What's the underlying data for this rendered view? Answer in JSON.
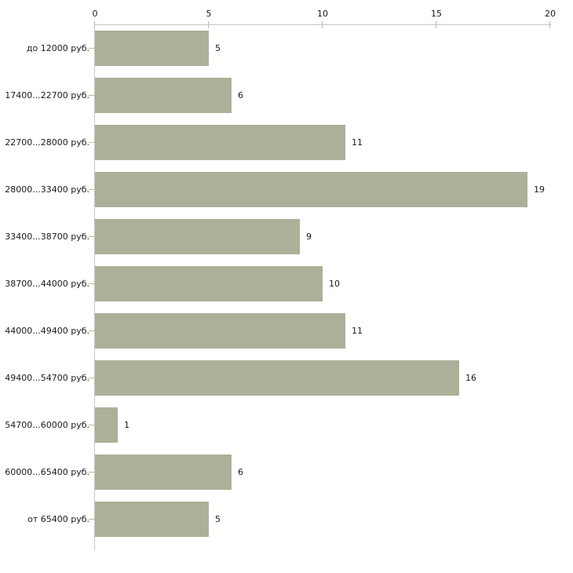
{
  "chart_data": {
    "type": "bar",
    "orientation": "horizontal",
    "title": "",
    "xlabel": "",
    "ylabel": "",
    "categories": [
      "до 12000 руб.",
      "17400...22700 руб.",
      "22700...28000 руб.",
      "28000...33400 руб.",
      "33400...38700 руб.",
      "38700...44000 руб.",
      "44000...49400 руб.",
      "49400...54700 руб.",
      "54700...60000 руб.",
      "60000...65400 руб.",
      "от 65400 руб."
    ],
    "values": [
      5,
      6,
      11,
      19,
      9,
      10,
      11,
      16,
      1,
      6,
      5
    ],
    "xlim": [
      0,
      20
    ],
    "xticks": [
      0,
      5,
      10,
      15,
      20
    ],
    "x_axis_position": "top",
    "grid": false,
    "legend": false,
    "value_labels_shown": true,
    "colors": {
      "bar": "#abb198",
      "axis_line": "#c6c6c0",
      "tick_mark": "#b7bb9d",
      "text": "#1a1a1a",
      "background": "#ffffff"
    }
  }
}
